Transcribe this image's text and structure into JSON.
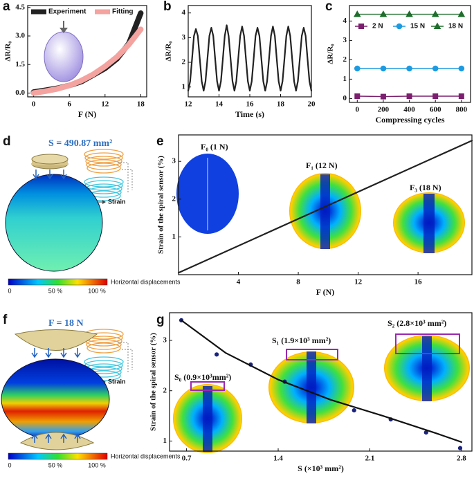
{
  "chart_data": [
    {
      "panel": "a",
      "type": "line",
      "xlabel": "F (N)",
      "ylabel": "ΔR/R₀",
      "xlim": [
        -1,
        19
      ],
      "ylim": [
        -0.2,
        4.6
      ],
      "xticks": [
        0,
        6,
        12,
        18
      ],
      "yticks": [
        {
          "value": 0,
          "label": "0.0"
        },
        {
          "value": 1.5,
          "label": "1.5"
        },
        {
          "value": 3,
          "label": "3.0"
        },
        {
          "value": 4.5,
          "label": "4.5"
        }
      ],
      "series": [
        {
          "name": "Experiment",
          "color": "#222222",
          "mode": "band",
          "x": [
            0,
            2,
            4,
            6,
            8,
            10,
            12,
            14,
            16,
            17,
            18
          ],
          "values": [
            0.05,
            0.15,
            0.25,
            0.4,
            0.6,
            0.95,
            1.3,
            1.8,
            2.6,
            3.4,
            4.2
          ]
        },
        {
          "name": "Fitting",
          "color": "#f4a3a0",
          "mode": "band",
          "x": [
            0,
            2,
            4,
            6,
            8,
            10,
            12,
            14,
            16,
            18
          ],
          "values": [
            0,
            0.1,
            0.22,
            0.4,
            0.65,
            0.98,
            1.4,
            1.9,
            2.55,
            3.35
          ]
        }
      ]
    },
    {
      "panel": "b",
      "type": "line",
      "xlabel": "Time (s)",
      "ylabel": "ΔR/R₀",
      "xlim": [
        12,
        20
      ],
      "ylim": [
        0.6,
        4.3
      ],
      "xticks": [
        12,
        14,
        16,
        18,
        20
      ],
      "yticks": [
        1,
        2,
        3,
        4
      ],
      "x": [
        12,
        12.125,
        12.25,
        12.375,
        12.5,
        12.625,
        12.75,
        12.875,
        13,
        13.125,
        13.25,
        13.375,
        13.5,
        13.625,
        13.75,
        13.875,
        14,
        14.125,
        14.25,
        14.375,
        14.5,
        14.625,
        14.75,
        14.875,
        15,
        15.125,
        15.25,
        15.375,
        15.5,
        15.625,
        15.75,
        15.875,
        16,
        16.125,
        16.25,
        16.375,
        16.5,
        16.625,
        16.75,
        16.875,
        17,
        17.125,
        17.25,
        17.375,
        17.5,
        17.625,
        17.75,
        17.875,
        18,
        18.125,
        18.25,
        18.375,
        18.5,
        18.625,
        18.75,
        18.875,
        19,
        19.125,
        19.25,
        19.375,
        19.5,
        19.625,
        19.75,
        19.875,
        20
      ],
      "series": [
        {
          "color": "#222222",
          "mode": "line",
          "values": [
            0.85,
            1.23,
            2.15,
            3.07,
            3.35,
            3.07,
            2.15,
            1.23,
            0.85,
            1.23,
            2.15,
            3.07,
            3.4,
            3.07,
            2.15,
            1.23,
            0.85,
            1.23,
            2.15,
            3.07,
            3.5,
            3.07,
            2.15,
            1.23,
            0.85,
            1.23,
            2.15,
            3.07,
            3.45,
            3.07,
            2.15,
            1.23,
            0.85,
            1.23,
            2.15,
            3.07,
            3.4,
            3.07,
            2.15,
            1.23,
            0.85,
            1.23,
            2.15,
            3.07,
            3.45,
            3.07,
            2.15,
            1.23,
            0.85,
            1.23,
            2.15,
            3.07,
            3.45,
            3.07,
            2.15,
            1.23,
            0.85,
            1.23,
            2.15,
            3.07,
            3.4,
            3.07,
            2.15,
            1.23,
            0.85
          ]
        }
      ]
    },
    {
      "panel": "c",
      "type": "line",
      "xlabel": "Compressing cycles",
      "ylabel": "ΔR/R₀",
      "xlim": [
        -60,
        870
      ],
      "ylim": [
        -0.2,
        4.8
      ],
      "xticks": [
        0,
        200,
        400,
        600,
        800
      ],
      "yticks": [
        0,
        1,
        2,
        3,
        4
      ],
      "x": [
        0,
        200,
        400,
        600,
        800
      ],
      "series": [
        {
          "name": "2 N",
          "color": "#7b1f6e",
          "mode": "line-marker",
          "marker": "square",
          "values": [
            0.12,
            0.1,
            0.12,
            0.12,
            0.12
          ]
        },
        {
          "name": "15 N",
          "color": "#1e9be0",
          "mode": "line-marker",
          "marker": "circle",
          "values": [
            1.55,
            1.55,
            1.55,
            1.55,
            1.55
          ]
        },
        {
          "name": "18 N",
          "color": "#1f6e2c",
          "mode": "line-marker",
          "marker": "triangle",
          "values": [
            4.35,
            4.35,
            4.35,
            4.35,
            4.35
          ]
        }
      ]
    },
    {
      "panel": "d",
      "type": "illustration",
      "title": "S = 490.87 mm²",
      "annotations": [
        "Strain"
      ],
      "colorbar": {
        "title": "Horizontal displacements",
        "labels": [
          "0",
          "50 %",
          "100 %"
        ]
      }
    },
    {
      "panel": "e",
      "type": "line",
      "xlabel": "F (N)",
      "ylabel": "Strain of the spiral sensor (%)",
      "xlim": [
        0,
        19.6
      ],
      "ylim": [
        0,
        3.7
      ],
      "xticks": [
        4,
        8,
        12,
        16
      ],
      "yticks": [
        1,
        2,
        3
      ],
      "series": [
        {
          "color": "#222222",
          "mode": "line",
          "x": [
            0,
            19.6
          ],
          "values": [
            0.05,
            3.55
          ]
        }
      ],
      "annotations": [
        "F₀ (1 N)",
        "F₁ (12 N)",
        "F₃ (18 N)"
      ]
    },
    {
      "panel": "f",
      "type": "illustration",
      "title": "F = 18 N",
      "annotations": [
        "Strain"
      ],
      "colorbar": {
        "title": "Horizontal displacements",
        "labels": [
          "0",
          "50 %",
          "100 %"
        ]
      }
    },
    {
      "panel": "g",
      "type": "scatter",
      "xlabel": "S (×10³ mm²)",
      "ylabel": "Strain of the spiral sensor (%)",
      "xlim": [
        0.57,
        2.88
      ],
      "ylim": [
        0.8,
        3.55
      ],
      "xticks": [
        0.7,
        1.4,
        2.1,
        2.8
      ],
      "yticks": [
        1,
        2,
        3
      ],
      "series": [
        {
          "color": "#1a237e",
          "mode": "markers",
          "x": [
            0.66,
            0.93,
            1.19,
            1.45,
            1.98,
            2.26,
            2.53,
            2.79
          ],
          "values": [
            3.4,
            2.72,
            2.52,
            2.18,
            1.61,
            1.43,
            1.17,
            0.86
          ]
        },
        {
          "color": "#111111",
          "mode": "line",
          "x": [
            0.66,
            1.0,
            1.4,
            1.8,
            2.2,
            2.6,
            2.8
          ],
          "values": [
            3.4,
            2.75,
            2.22,
            1.82,
            1.5,
            1.16,
            0.98
          ]
        }
      ],
      "annotations": [
        "S₀ (0.9×10³mm²)",
        "S₁ (1.9×10³ mm²)",
        "S₂ (2.8×10³ mm²)"
      ]
    }
  ]
}
